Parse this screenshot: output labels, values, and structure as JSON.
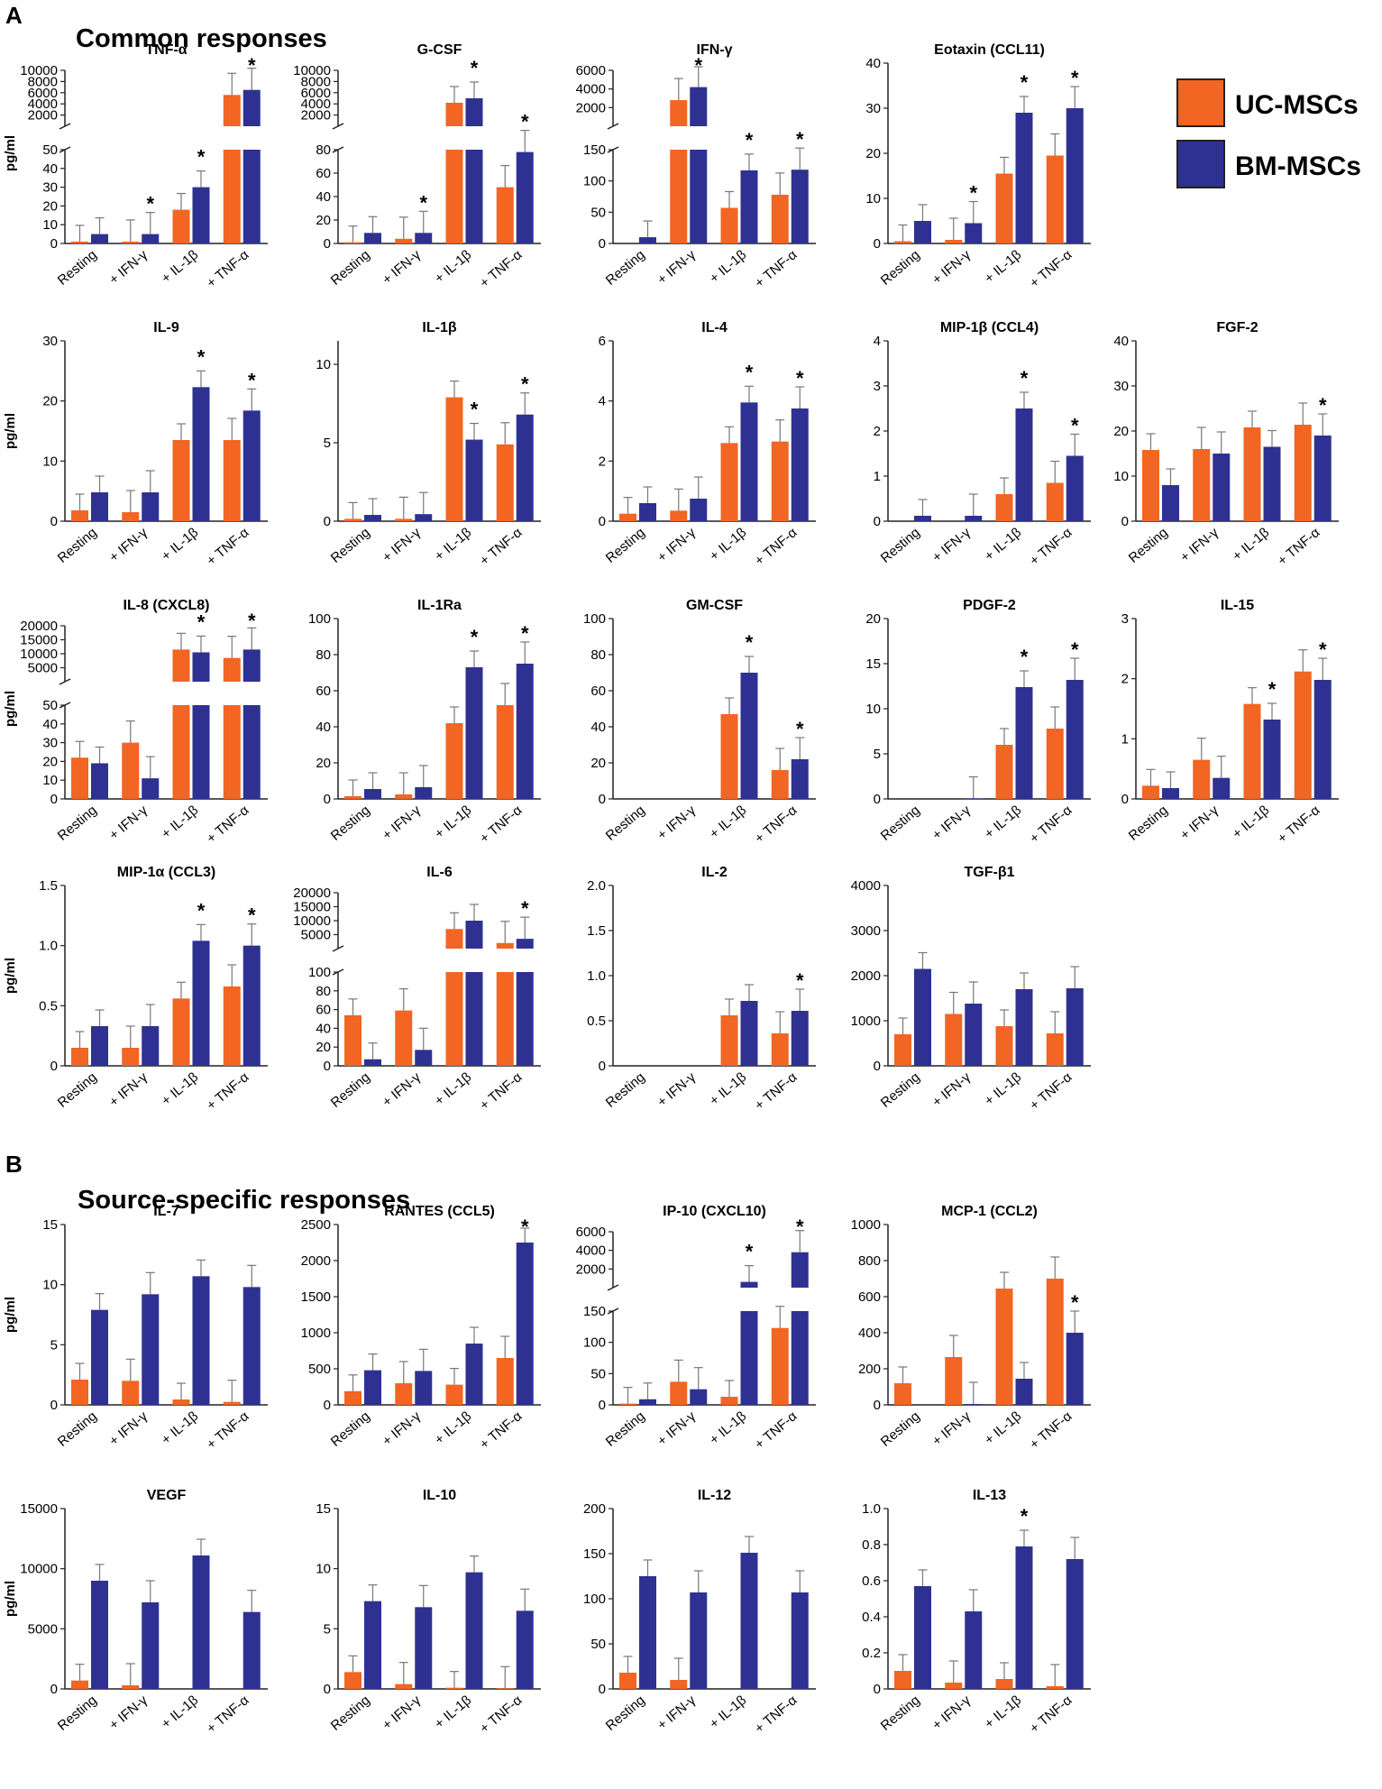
{
  "panel_a": {
    "letter": "A",
    "title": "Common responses"
  },
  "panel_b": {
    "letter": "B",
    "title": "Source-specific responses"
  },
  "legend": [
    {
      "label": "UC-MSCs",
      "color": "#f26522"
    },
    {
      "label": "BM-MSCs",
      "color": "#2e3192"
    }
  ],
  "colors": {
    "uc": "#f26522",
    "bm": "#2e3192",
    "axis": "#222222"
  },
  "categories": [
    "Resting",
    "+ IFN-γ",
    "+ IL-1β",
    "+ TNF-α"
  ],
  "ylabel": "pg/ml",
  "chart_data": [
    {
      "type": "bar",
      "title": "TNF-α",
      "ylabel": "pg/ml",
      "upper_ticks": [
        "10000",
        "8000",
        "6000",
        "4000",
        "2000"
      ],
      "lower_ticks": [
        "50",
        "40",
        "30",
        "20",
        "10",
        "0"
      ],
      "ylim_lower": [
        0,
        50
      ],
      "ylim_upper": [
        0,
        10000
      ],
      "series": [
        {
          "name": "UC-MSCs",
          "values": [
            1,
            1,
            18,
            5600
          ]
        },
        {
          "name": "BM-MSCs",
          "values": [
            5,
            5,
            30,
            6500
          ]
        }
      ],
      "stars": [
        2,
        3,
        4
      ]
    },
    {
      "type": "bar",
      "title": "G-CSF",
      "ylabel": "",
      "upper_ticks": [
        "10000",
        "8000",
        "6000",
        "4000",
        "2000"
      ],
      "lower_ticks": [
        "80",
        "60",
        "40",
        "20",
        "0"
      ],
      "ylim_lower": [
        0,
        80
      ],
      "ylim_upper": [
        0,
        10000
      ],
      "series": [
        {
          "name": "UC-MSCs",
          "values": [
            1,
            4,
            4200,
            48
          ]
        },
        {
          "name": "BM-MSCs",
          "values": [
            9,
            9,
            5000,
            78
          ]
        }
      ],
      "stars": [
        2,
        3,
        4
      ]
    },
    {
      "type": "bar",
      "title": "IFN-γ",
      "ylabel": "",
      "upper_ticks": [
        "6000",
        "4000",
        "2000"
      ],
      "lower_ticks": [
        "150",
        "100",
        "50",
        "0"
      ],
      "ylim_lower": [
        0,
        150
      ],
      "ylim_upper": [
        0,
        6000
      ],
      "series": [
        {
          "name": "UC-MSCs",
          "values": [
            0,
            2800,
            57,
            78
          ]
        },
        {
          "name": "BM-MSCs",
          "values": [
            10,
            4200,
            117,
            118
          ]
        }
      ],
      "stars": [
        2,
        3,
        4
      ]
    },
    {
      "type": "bar",
      "title": "Eotaxin (CCL11)",
      "ylabel": "",
      "ticks": [
        "40",
        "30",
        "20",
        "10",
        "0"
      ],
      "ylim": [
        0,
        40
      ],
      "series": [
        {
          "name": "UC-MSCs",
          "values": [
            0.5,
            0.8,
            15.5,
            19.5
          ]
        },
        {
          "name": "BM-MSCs",
          "values": [
            5,
            4.5,
            29,
            30
          ]
        }
      ],
      "stars": [
        2,
        3,
        4
      ]
    },
    {
      "type": "bar",
      "title": "IL-9",
      "ylabel": "pg/ml",
      "ticks": [
        "30",
        "20",
        "10",
        "0"
      ],
      "ylim": [
        0,
        30
      ],
      "series": [
        {
          "name": "UC-MSCs",
          "values": [
            1.8,
            1.5,
            13.5,
            13.5
          ]
        },
        {
          "name": "BM-MSCs",
          "values": [
            4.8,
            4.8,
            22.3,
            18.4
          ]
        }
      ],
      "stars": [
        3,
        4
      ]
    },
    {
      "type": "bar",
      "title": "IL-1β",
      "ylabel": "",
      "ticks": [
        "10",
        "5",
        "0"
      ],
      "ylim": [
        0,
        11.5
      ],
      "series": [
        {
          "name": "UC-MSCs",
          "values": [
            0.15,
            0.15,
            7.9,
            4.9
          ]
        },
        {
          "name": "BM-MSCs",
          "values": [
            0.4,
            0.45,
            5.2,
            6.8
          ]
        }
      ],
      "stars": [
        3,
        4
      ]
    },
    {
      "type": "bar",
      "title": "IL-4",
      "ylabel": "",
      "ticks": [
        "6",
        "4",
        "2",
        "0"
      ],
      "ylim": [
        0,
        6
      ],
      "series": [
        {
          "name": "UC-MSCs",
          "values": [
            0.25,
            0.35,
            2.6,
            2.65
          ]
        },
        {
          "name": "BM-MSCs",
          "values": [
            0.6,
            0.75,
            3.95,
            3.75
          ]
        }
      ],
      "stars": [
        3,
        4
      ]
    },
    {
      "type": "bar",
      "title": "MIP-1β (CCL4)",
      "ylabel": "",
      "ticks": [
        "4",
        "3",
        "2",
        "1",
        "0"
      ],
      "ylim": [
        0,
        4
      ],
      "series": [
        {
          "name": "UC-MSCs",
          "values": [
            0,
            0,
            0.6,
            0.85
          ]
        },
        {
          "name": "BM-MSCs",
          "values": [
            0.12,
            0.12,
            2.5,
            1.45
          ]
        }
      ],
      "stars": [
        3,
        4
      ]
    },
    {
      "type": "bar",
      "title": "FGF-2",
      "ylabel": "",
      "ticks": [
        "40",
        "30",
        "20",
        "10",
        "0"
      ],
      "ylim": [
        0,
        40
      ],
      "series": [
        {
          "name": "UC-MSCs",
          "values": [
            15.8,
            16,
            20.8,
            21.4
          ]
        },
        {
          "name": "BM-MSCs",
          "values": [
            8,
            15,
            16.5,
            19
          ]
        }
      ],
      "stars": [
        4
      ]
    },
    {
      "type": "bar",
      "title": "IL-8 (CXCL8)",
      "ylabel": "pg/ml",
      "upper_ticks": [
        "20000",
        "15000",
        "10000",
        "5000"
      ],
      "lower_ticks": [
        "50",
        "40",
        "30",
        "20",
        "10",
        "0"
      ],
      "ylim_lower": [
        0,
        50
      ],
      "ylim_upper": [
        0,
        20000
      ],
      "series": [
        {
          "name": "UC-MSCs",
          "values": [
            22,
            30,
            11500,
            8500
          ]
        },
        {
          "name": "BM-MSCs",
          "values": [
            19,
            11,
            10500,
            11500
          ]
        }
      ],
      "stars": [
        3,
        4
      ]
    },
    {
      "type": "bar",
      "title": "IL-1Ra",
      "ylabel": "",
      "ticks": [
        "100",
        "80",
        "60",
        "40",
        "20",
        "0"
      ],
      "ylim": [
        0,
        100
      ],
      "series": [
        {
          "name": "UC-MSCs",
          "values": [
            1.5,
            2.5,
            42,
            52
          ]
        },
        {
          "name": "BM-MSCs",
          "values": [
            5.5,
            6.5,
            73,
            75
          ]
        }
      ],
      "stars": [
        3,
        4
      ]
    },
    {
      "type": "bar",
      "title": "GM-CSF",
      "ylabel": "",
      "ticks": [
        "100",
        "80",
        "60",
        "40",
        "20",
        "0"
      ],
      "ylim": [
        0,
        100
      ],
      "series": [
        {
          "name": "UC-MSCs",
          "values": [
            0,
            0,
            47,
            16
          ]
        },
        {
          "name": "BM-MSCs",
          "values": [
            0,
            0,
            70,
            22
          ]
        }
      ],
      "stars": [
        3,
        4
      ]
    },
    {
      "type": "bar",
      "title": "PDGF-2",
      "ylabel": "",
      "ticks": [
        "20",
        "15",
        "10",
        "5",
        "0"
      ],
      "ylim": [
        0,
        20
      ],
      "series": [
        {
          "name": "UC-MSCs",
          "values": [
            0,
            0,
            6,
            7.8
          ]
        },
        {
          "name": "BM-MSCs",
          "values": [
            0,
            0.05,
            12.4,
            13.2
          ]
        }
      ],
      "stars": [
        3,
        4
      ]
    },
    {
      "type": "bar",
      "title": "IL-15",
      "ylabel": "",
      "ticks": [
        "3",
        "2",
        "1",
        "0"
      ],
      "ylim": [
        0,
        3
      ],
      "series": [
        {
          "name": "UC-MSCs",
          "values": [
            0.22,
            0.65,
            1.58,
            2.12
          ]
        },
        {
          "name": "BM-MSCs",
          "values": [
            0.18,
            0.35,
            1.32,
            1.98
          ]
        }
      ],
      "stars": [
        3,
        4
      ]
    },
    {
      "type": "bar",
      "title": "MIP-1α (CCL3)",
      "ylabel": "pg/ml",
      "ticks": [
        "1.5",
        "1.0",
        "0.5",
        "0"
      ],
      "ylim": [
        0,
        1.5
      ],
      "series": [
        {
          "name": "UC-MSCs",
          "values": [
            0.15,
            0.15,
            0.56,
            0.66
          ]
        },
        {
          "name": "BM-MSCs",
          "values": [
            0.33,
            0.33,
            1.04,
            1.0
          ]
        }
      ],
      "stars": [
        3,
        4
      ]
    },
    {
      "type": "bar",
      "title": "IL-6",
      "ylabel": "",
      "upper_ticks": [
        "20000",
        "15000",
        "10000",
        "5000"
      ],
      "lower_ticks": [
        "100",
        "80",
        "60",
        "40",
        "20",
        "0"
      ],
      "ylim_lower": [
        0,
        100
      ],
      "ylim_upper": [
        0,
        20000
      ],
      "series": [
        {
          "name": "UC-MSCs",
          "values": [
            54,
            59,
            7000,
            2000
          ]
        },
        {
          "name": "BM-MSCs",
          "values": [
            7,
            17,
            10000,
            3500
          ]
        }
      ],
      "stars": [
        4
      ]
    },
    {
      "type": "bar",
      "title": "IL-2",
      "ylabel": "",
      "ticks": [
        "2.0",
        "1.5",
        "1.0",
        "0.5",
        "0"
      ],
      "ylim": [
        0,
        2.0
      ],
      "series": [
        {
          "name": "UC-MSCs",
          "values": [
            0,
            0,
            0.56,
            0.36
          ]
        },
        {
          "name": "BM-MSCs",
          "values": [
            0,
            0,
            0.72,
            0.61
          ]
        }
      ],
      "stars": [
        4
      ]
    },
    {
      "type": "bar",
      "title": "TGF-β1",
      "ylabel": "",
      "ticks": [
        "4000",
        "3000",
        "2000",
        "1000",
        "0"
      ],
      "ylim": [
        0,
        4000
      ],
      "series": [
        {
          "name": "UC-MSCs",
          "values": [
            700,
            1150,
            880,
            720
          ]
        },
        {
          "name": "BM-MSCs",
          "values": [
            2150,
            1380,
            1700,
            1720
          ]
        }
      ],
      "stars": []
    },
    {
      "type": "bar",
      "title": "IL-7",
      "ylabel": "pg/ml",
      "ticks": [
        "15",
        "10",
        "5",
        "0"
      ],
      "ylim": [
        0,
        15
      ],
      "series": [
        {
          "name": "UC-MSCs",
          "values": [
            2.1,
            2.0,
            0.45,
            0.25
          ]
        },
        {
          "name": "BM-MSCs",
          "values": [
            7.9,
            9.2,
            10.7,
            9.8
          ]
        }
      ],
      "stars": []
    },
    {
      "type": "bar",
      "title": "RANTES (CCL5)",
      "ylabel": "",
      "ticks": [
        "2500",
        "2000",
        "1500",
        "1000",
        "500",
        "0"
      ],
      "ylim": [
        0,
        2500
      ],
      "series": [
        {
          "name": "UC-MSCs",
          "values": [
            190,
            300,
            280,
            650
          ]
        },
        {
          "name": "BM-MSCs",
          "values": [
            480,
            470,
            850,
            2250
          ]
        }
      ],
      "stars": [
        4
      ]
    },
    {
      "type": "bar",
      "title": "IP-10 (CXCL10)",
      "ylabel": "",
      "upper_ticks": [
        "6000",
        "4000",
        "2000"
      ],
      "lower_ticks": [
        "150",
        "100",
        "50",
        "0"
      ],
      "ylim_lower": [
        0,
        150
      ],
      "ylim_upper": [
        0,
        6000
      ],
      "series": [
        {
          "name": "UC-MSCs",
          "values": [
            2,
            37,
            13,
            123
          ]
        },
        {
          "name": "BM-MSCs",
          "values": [
            9,
            25,
            620,
            3800
          ]
        }
      ],
      "stars": [
        3,
        4
      ]
    },
    {
      "type": "bar",
      "title": "MCP-1 (CCL2)",
      "ylabel": "",
      "ticks": [
        "1000",
        "800",
        "600",
        "400",
        "200",
        "0"
      ],
      "ylim": [
        0,
        1000
      ],
      "series": [
        {
          "name": "UC-MSCs",
          "values": [
            120,
            265,
            645,
            700
          ]
        },
        {
          "name": "BM-MSCs",
          "values": [
            0,
            5,
            145,
            400
          ]
        }
      ],
      "stars": [
        4
      ]
    },
    {
      "type": "bar",
      "title": "VEGF",
      "ylabel": "pg/ml",
      "ticks": [
        "15000",
        "10000",
        "5000",
        "0"
      ],
      "ylim": [
        0,
        15000
      ],
      "series": [
        {
          "name": "UC-MSCs",
          "values": [
            700,
            300,
            0,
            0
          ]
        },
        {
          "name": "BM-MSCs",
          "values": [
            9000,
            7200,
            11100,
            6400
          ]
        }
      ],
      "stars": []
    },
    {
      "type": "bar",
      "title": "IL-10",
      "ylabel": "",
      "ticks": [
        "15",
        "10",
        "5",
        "0"
      ],
      "ylim": [
        0,
        15
      ],
      "series": [
        {
          "name": "UC-MSCs",
          "values": [
            1.4,
            0.4,
            0.1,
            0.05
          ]
        },
        {
          "name": "BM-MSCs",
          "values": [
            7.3,
            6.8,
            9.7,
            6.5
          ]
        }
      ],
      "stars": []
    },
    {
      "type": "bar",
      "title": "IL-12",
      "ylabel": "",
      "ticks": [
        "200",
        "150",
        "100",
        "50",
        "0"
      ],
      "ylim": [
        0,
        200
      ],
      "series": [
        {
          "name": "UC-MSCs",
          "values": [
            18,
            10,
            0,
            0
          ]
        },
        {
          "name": "BM-MSCs",
          "values": [
            125,
            107,
            151,
            107
          ]
        }
      ],
      "stars": []
    },
    {
      "type": "bar",
      "title": "IL-13",
      "ylabel": "",
      "ticks": [
        "1.0",
        "0.8",
        "0.6",
        "0.4",
        "0.2",
        "0"
      ],
      "ylim": [
        0,
        1.0
      ],
      "series": [
        {
          "name": "UC-MSCs",
          "values": [
            0.1,
            0.035,
            0.055,
            0.015
          ]
        },
        {
          "name": "BM-MSCs",
          "values": [
            0.57,
            0.43,
            0.79,
            0.72
          ]
        }
      ],
      "stars": [
        3
      ]
    }
  ]
}
